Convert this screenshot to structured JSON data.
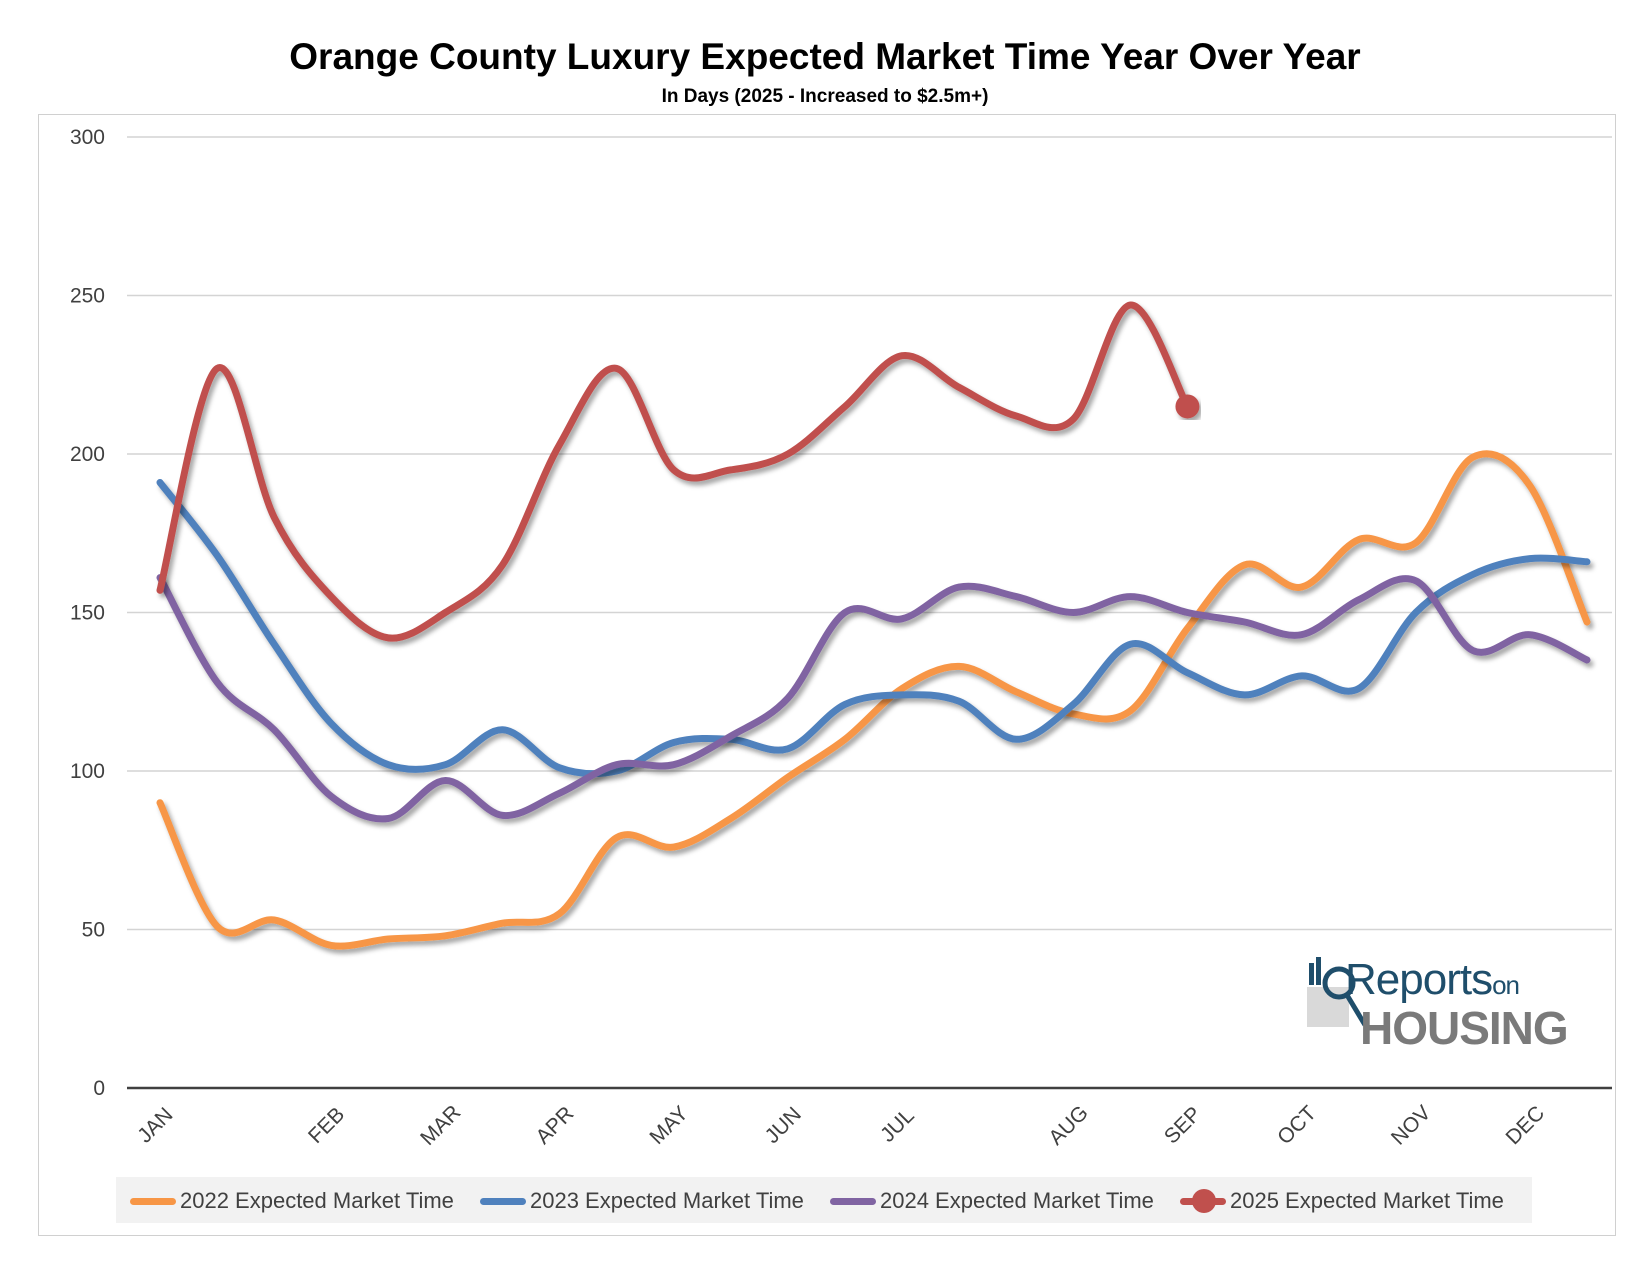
{
  "chart_data": {
    "type": "line",
    "title": "Orange County Luxury Expected Market Time Year Over Year",
    "subtitle": "In Days (2025 - Increased to $2.5m+)",
    "xlabel": "",
    "ylabel": "",
    "ylim": [
      0,
      300
    ],
    "yticks": [
      0,
      50,
      100,
      150,
      200,
      250,
      300
    ],
    "grid": true,
    "legend_position": "bottom",
    "x_ticks": [
      {
        "label": "JAN",
        "x": 0
      },
      {
        "label": "FEB",
        "x": 3
      },
      {
        "label": "MAR",
        "x": 5
      },
      {
        "label": "APR",
        "x": 7
      },
      {
        "label": "MAY",
        "x": 9
      },
      {
        "label": "JUN",
        "x": 11
      },
      {
        "label": "JUL",
        "x": 13
      },
      {
        "label": "AUG",
        "x": 16
      },
      {
        "label": "SEP",
        "x": 18
      },
      {
        "label": "OCT",
        "x": 20
      },
      {
        "label": "NOV",
        "x": 22
      },
      {
        "label": "DEC",
        "x": 24
      }
    ],
    "x_count": 26,
    "series": [
      {
        "name": "2022 Expected Market Time",
        "color": "#f79646",
        "values": [
          90,
          51,
          53,
          45,
          47,
          48,
          52,
          55,
          79,
          76,
          85,
          98,
          110,
          126,
          133,
          125,
          118,
          119,
          145,
          165,
          158,
          173,
          172,
          199,
          190,
          147
        ]
      },
      {
        "name": "2023 Expected Market Time",
        "color": "#4f81bd",
        "values": [
          191,
          168,
          140,
          115,
          102,
          102,
          113,
          101,
          100,
          109,
          110,
          107,
          121,
          124,
          122,
          110,
          121,
          140,
          131,
          124,
          130,
          126,
          150,
          162,
          167,
          166
        ]
      },
      {
        "name": "2024 Expected Market Time",
        "color": "#8064a2",
        "values": [
          161,
          128,
          113,
          92,
          85,
          97,
          86,
          93,
          102,
          102,
          111,
          123,
          150,
          148,
          158,
          155,
          150,
          155,
          150,
          147,
          143,
          154,
          160,
          138,
          143,
          135
        ]
      },
      {
        "name": "2025 Expected Market Time",
        "color": "#c0504d",
        "values": [
          157,
          227,
          180,
          155,
          142,
          150,
          165,
          203,
          227,
          195,
          195,
          200,
          215,
          231,
          221,
          212,
          211,
          247,
          215
        ],
        "end_marker": true
      }
    ]
  },
  "legend": [
    {
      "label": "2022 Expected Market Time",
      "color": "#f79646"
    },
    {
      "label": "2023 Expected Market Time",
      "color": "#4f81bd"
    },
    {
      "label": "2024 Expected Market Time",
      "color": "#8064a2"
    },
    {
      "label": "2025 Expected Market Time",
      "color": "#c0504d",
      "marker": "circle"
    }
  ],
  "logo": {
    "reports": "Reports",
    "on": "on",
    "housing": "HOUSING"
  }
}
